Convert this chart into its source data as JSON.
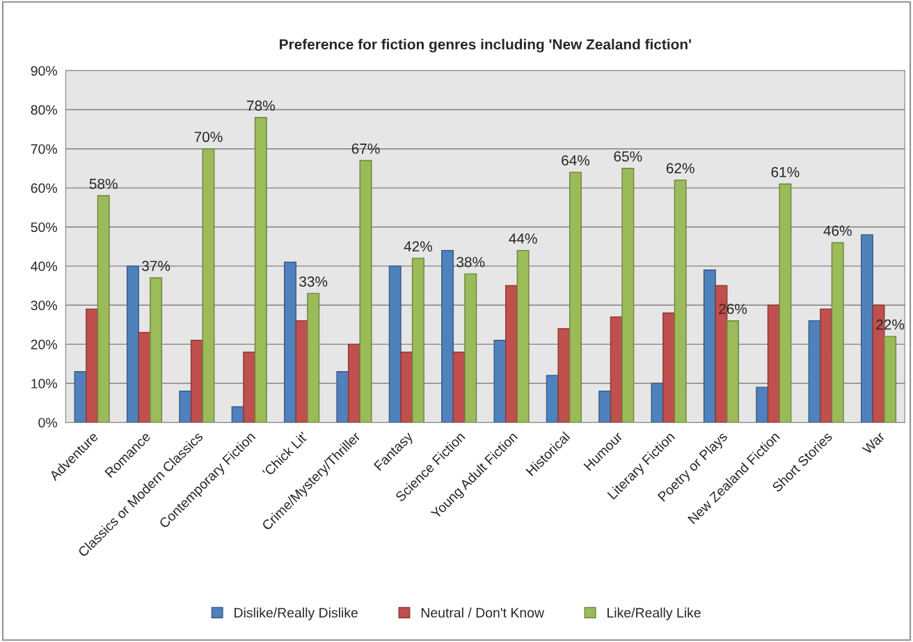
{
  "chart_data": {
    "type": "bar",
    "title": "Preference for fiction genres including 'New Zealand fiction'",
    "categories": [
      "Adventure",
      "Romance",
      "Classics or Modern Classics",
      "Contemporary Fiction",
      "'Chick Lit'",
      "Crime/Mystery/Thriller",
      "Fantasy",
      "Science Fiction",
      "Young Adult Fiction",
      "Historical",
      "Humour",
      "Literary Fiction",
      "Poetry or Plays",
      "New Zealand Fiction",
      "Short Stories",
      "War"
    ],
    "series": [
      {
        "name": "Dislike/Really Dislike",
        "color": "#4f81bd",
        "values": [
          13,
          40,
          8,
          4,
          41,
          13,
          40,
          44,
          21,
          12,
          8,
          10,
          39,
          9,
          26,
          48
        ]
      },
      {
        "name": "Neutral / Don't Know",
        "color": "#c0504d",
        "values": [
          29,
          23,
          21,
          18,
          26,
          20,
          18,
          18,
          35,
          24,
          27,
          28,
          35,
          30,
          29,
          30
        ]
      },
      {
        "name": "Like/Really Like",
        "color": "#9bbb59",
        "values": [
          58,
          37,
          70,
          78,
          33,
          67,
          42,
          38,
          44,
          64,
          65,
          62,
          26,
          61,
          46,
          22
        ],
        "value_labels": [
          "58%",
          "37%",
          "70%",
          "78%",
          "33%",
          "67%",
          "42%",
          "38%",
          "44%",
          "64%",
          "65%",
          "62%",
          "26%",
          "61%",
          "46%",
          "22%"
        ]
      }
    ],
    "ylim": [
      0,
      90
    ],
    "yticks": [
      {
        "value": 0,
        "label": "0%"
      },
      {
        "value": 10,
        "label": "10%"
      },
      {
        "value": 20,
        "label": "20%"
      },
      {
        "value": 30,
        "label": "30%"
      },
      {
        "value": 40,
        "label": "40%"
      },
      {
        "value": 50,
        "label": "50%"
      },
      {
        "value": 60,
        "label": "60%"
      },
      {
        "value": 70,
        "label": "70%"
      },
      {
        "value": 80,
        "label": "80%"
      },
      {
        "value": 90,
        "label": "90%"
      }
    ],
    "grid": "y",
    "legend": "bottom"
  }
}
